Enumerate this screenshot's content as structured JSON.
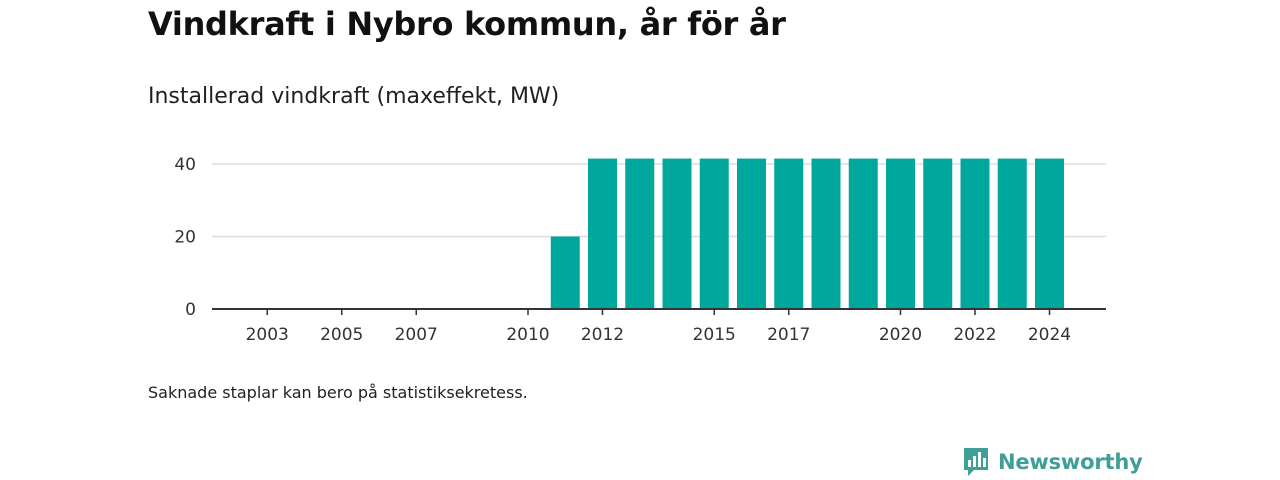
{
  "header": {
    "title": "Vindkraft i Nybro kommun, år för år",
    "subtitle": "Installerad vindkraft (maxeffekt, MW)"
  },
  "footer": {
    "note": "Saknade staplar kan bero på statistiksekretess.",
    "brand_name": "Newsworthy",
    "brand_icon": "newsworthy-logo-icon"
  },
  "colors": {
    "bar": "#00a79d",
    "grid": "#dddddd",
    "axis": "#333333",
    "brand": "#3f9e98"
  },
  "chart_data": {
    "type": "bar",
    "title": "Installerad vindkraft (maxeffekt, MW)",
    "xlabel": "",
    "ylabel": "",
    "categories": [
      2002,
      2003,
      2004,
      2005,
      2006,
      2007,
      2008,
      2009,
      2010,
      2011,
      2012,
      2013,
      2014,
      2015,
      2016,
      2017,
      2018,
      2019,
      2020,
      2021,
      2022,
      2023,
      2024
    ],
    "values": [
      0,
      0,
      0,
      0,
      0,
      0,
      0,
      0,
      0,
      20,
      41.5,
      41.5,
      41.5,
      41.5,
      41.5,
      41.5,
      41.5,
      41.5,
      41.5,
      41.5,
      41.5,
      41.5,
      41.5
    ],
    "ylim": [
      0,
      45
    ],
    "yticks": [
      0,
      20,
      40
    ],
    "xticks": [
      "2003",
      "2005",
      "2007",
      "2010",
      "2012",
      "2015",
      "2017",
      "2020",
      "2022",
      "2024"
    ],
    "grid": true,
    "legend": "none"
  }
}
